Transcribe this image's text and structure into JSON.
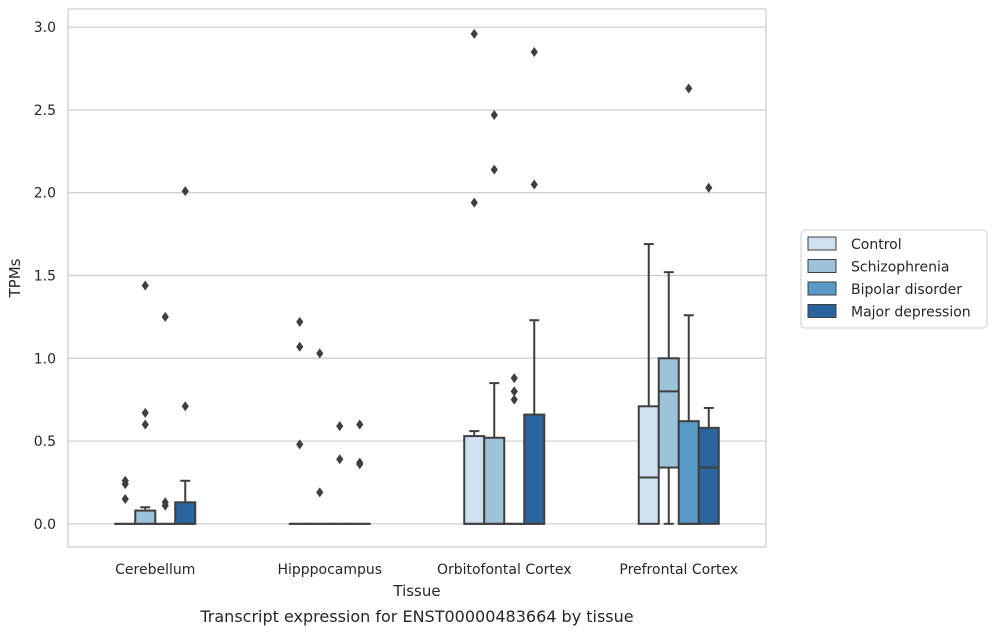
{
  "chart_data": {
    "type": "box",
    "title": "Transcript expression for ENST00000483664 by tissue",
    "xlabel": "Tissue",
    "ylabel": "TPMs",
    "ylim": [
      -0.14,
      3.11
    ],
    "yticks": [
      0.0,
      0.5,
      1.0,
      1.5,
      2.0,
      2.5,
      3.0
    ],
    "ytick_labels": [
      "0.0",
      "0.5",
      "1.0",
      "1.5",
      "2.0",
      "2.5",
      "3.0"
    ],
    "grid": "horizontal",
    "legend_position": "right",
    "categories": [
      "Cerebellum",
      "Hipppocampus",
      "Orbitofontal Cortex",
      "Prefrontal Cortex"
    ],
    "series": [
      {
        "name": "Control",
        "color": "#cfe0f0",
        "boxes": [
          {
            "q1": 0,
            "median": 0,
            "q3": 0,
            "whislo": 0,
            "whishi": 0,
            "fliers": [
              0.26,
              0.24,
              0.15
            ]
          },
          {
            "q1": 0,
            "median": 0,
            "q3": 0,
            "whislo": 0,
            "whishi": 0,
            "fliers": [
              1.22,
              1.07,
              0.48
            ]
          },
          {
            "q1": 0,
            "median": 0,
            "q3": 0.53,
            "whislo": 0,
            "whishi": 0.56,
            "fliers": [
              2.96,
              1.94
            ]
          },
          {
            "q1": 0,
            "median": 0.28,
            "q3": 0.71,
            "whislo": 0,
            "whishi": 1.69,
            "fliers": []
          }
        ]
      },
      {
        "name": "Schizophrenia",
        "color": "#9cc3da",
        "boxes": [
          {
            "q1": 0,
            "median": 0,
            "q3": 0.08,
            "whislo": 0,
            "whishi": 0.1,
            "fliers": [
              1.44,
              0.67,
              0.6
            ]
          },
          {
            "q1": 0,
            "median": 0,
            "q3": 0,
            "whislo": 0,
            "whishi": 0,
            "fliers": [
              1.03,
              0.19
            ]
          },
          {
            "q1": 0,
            "median": 0,
            "q3": 0.52,
            "whislo": 0,
            "whishi": 0.85,
            "fliers": [
              2.47,
              2.14
            ]
          },
          {
            "q1": 0.34,
            "median": 0.8,
            "q3": 1.0,
            "whislo": 0,
            "whishi": 1.52,
            "fliers": []
          }
        ]
      },
      {
        "name": "Bipolar disorder",
        "color": "#5a9ac6",
        "boxes": [
          {
            "q1": 0,
            "median": 0,
            "q3": 0,
            "whislo": 0,
            "whishi": 0,
            "fliers": [
              1.25,
              0.13,
              0.11
            ]
          },
          {
            "q1": 0,
            "median": 0,
            "q3": 0,
            "whislo": 0,
            "whishi": 0,
            "fliers": [
              0.59,
              0.39
            ]
          },
          {
            "q1": 0,
            "median": 0,
            "q3": 0,
            "whislo": 0,
            "whishi": 0,
            "fliers": [
              0.88,
              0.8,
              0.75
            ]
          },
          {
            "q1": 0,
            "median": 0,
            "q3": 0.62,
            "whislo": 0,
            "whishi": 1.26,
            "fliers": [
              2.63
            ]
          }
        ]
      },
      {
        "name": "Major depression",
        "color": "#2a649e",
        "boxes": [
          {
            "q1": 0,
            "median": 0,
            "q3": 0.13,
            "whislo": 0,
            "whishi": 0.26,
            "fliers": [
              2.01,
              0.71
            ]
          },
          {
            "q1": 0,
            "median": 0,
            "q3": 0,
            "whislo": 0,
            "whishi": 0,
            "fliers": [
              0.6,
              0.37,
              0.36
            ]
          },
          {
            "q1": 0,
            "median": 0,
            "q3": 0.66,
            "whislo": 0,
            "whishi": 1.23,
            "fliers": [
              2.85,
              2.05
            ]
          },
          {
            "q1": 0,
            "median": 0.34,
            "q3": 0.58,
            "whislo": 0,
            "whishi": 0.7,
            "fliers": [
              2.03
            ]
          }
        ]
      }
    ]
  }
}
